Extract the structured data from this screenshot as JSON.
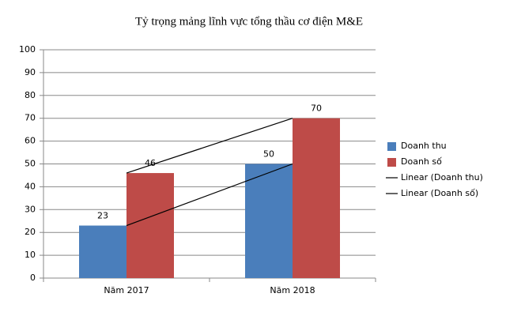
{
  "chart_data": {
    "type": "bar",
    "title": "Tỷ trọng mảng lĩnh vực tổng thầu cơ điện M&E",
    "categories": [
      "Năm 2017",
      "Năm 2018"
    ],
    "series": [
      {
        "name": "Doanh thu",
        "color": "#4a7ebb",
        "values": [
          23,
          50
        ],
        "trendline": {
          "name": "Linear (Doanh thu)",
          "color": "#000000"
        }
      },
      {
        "name": "Doanh số",
        "color": "#be4b48",
        "values": [
          46,
          70
        ],
        "trendline": {
          "name": "Linear (Doanh số)",
          "color": "#000000"
        }
      }
    ],
    "ylim": [
      0,
      100
    ],
    "yticks": [
      0,
      10,
      20,
      30,
      40,
      50,
      60,
      70,
      80,
      90,
      100
    ],
    "grid": true,
    "legend": "right"
  }
}
